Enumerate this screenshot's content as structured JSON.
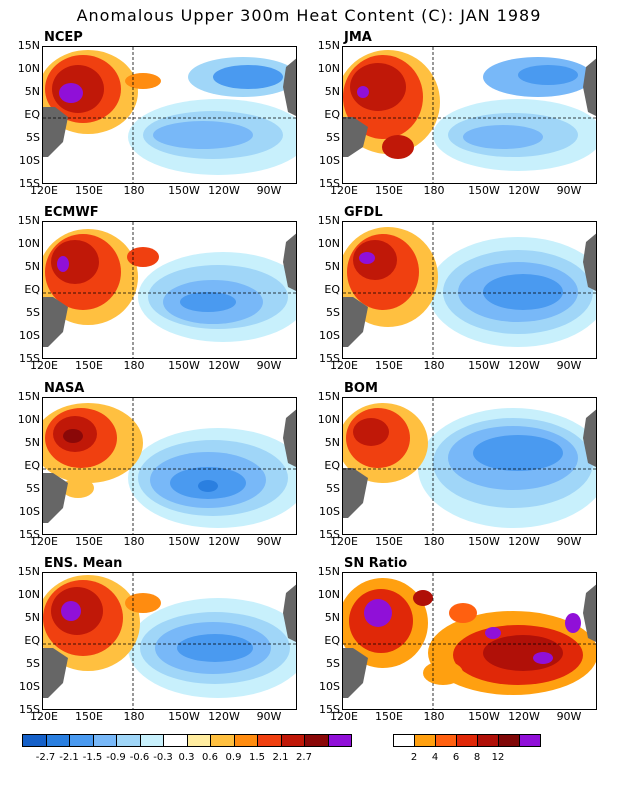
{
  "title": "Anomalous Upper 300m Heat Content (C): JAN 1989",
  "panels": [
    {
      "name": "NCEP"
    },
    {
      "name": "JMA"
    },
    {
      "name": "ECMWF"
    },
    {
      "name": "GFDL"
    },
    {
      "name": "NASA"
    },
    {
      "name": "BOM"
    },
    {
      "name": "ENS. Mean"
    },
    {
      "name": "SN Ratio"
    }
  ],
  "y_ticks": [
    "15N",
    "10N",
    "5N",
    "EQ",
    "5S",
    "10S",
    "15S"
  ],
  "x_ticks": [
    "120E",
    "150E",
    "180",
    "150W",
    "120W",
    "90W"
  ],
  "anomaly_colorbar": {
    "colors": [
      "#1560c8",
      "#2a7fe0",
      "#4a9af0",
      "#78b8f8",
      "#a0d6f8",
      "#c8f0fc",
      "#ffffff",
      "#ffeca0",
      "#ffc040",
      "#ff8c10",
      "#f04010",
      "#c01808",
      "#8a0808",
      "#9010d8"
    ],
    "labels": [
      "-2.7",
      "-2.1",
      "-1.5",
      "-0.9",
      "-0.6",
      "-0.3",
      "0.3",
      "0.6",
      "0.9",
      "1.5",
      "2.1",
      "2.7"
    ]
  },
  "sn_colorbar": {
    "colors": [
      "#ffffff",
      "#ffa010",
      "#ff6010",
      "#e02808",
      "#b01008",
      "#800808",
      "#9010d8"
    ],
    "labels": [
      "2",
      "4",
      "6",
      "8",
      "12"
    ]
  }
}
